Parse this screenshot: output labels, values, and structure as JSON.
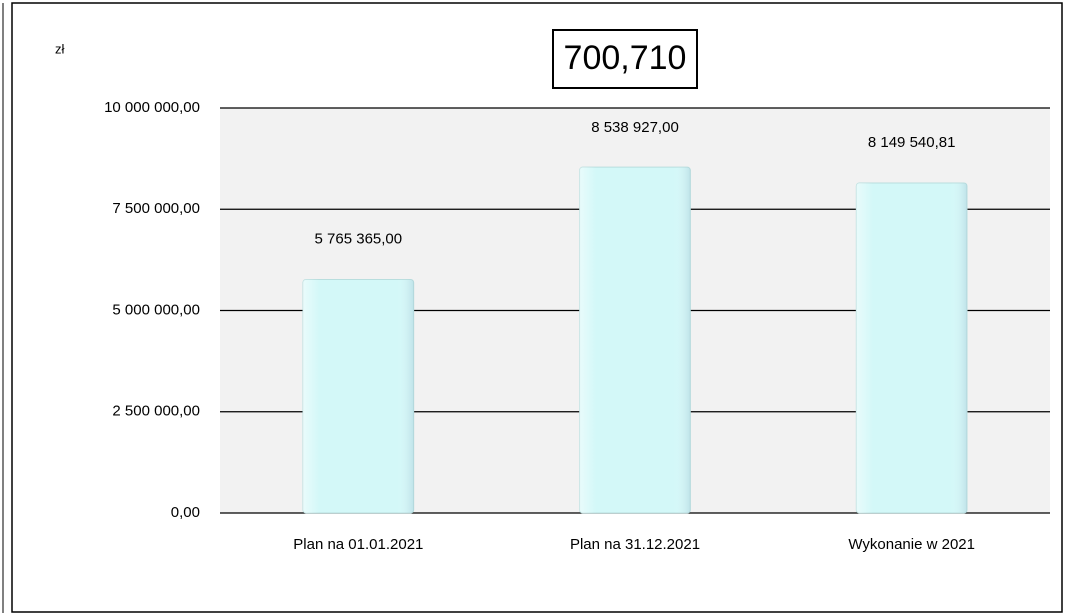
{
  "chart_data": {
    "type": "bar",
    "title": "700,710",
    "y_label": "zł",
    "categories": [
      "Plan na 01.01.2021",
      "Plan na 31.12.2021",
      "Wykonanie w 2021"
    ],
    "values": [
      5765365,
      8538927,
      8149540.81
    ],
    "value_labels": [
      "5 765 365,00",
      "8 538 927,00",
      "8 149 540,81"
    ],
    "color": "#d3f8f8",
    "ylim": [
      0,
      10000000
    ],
    "yticks": [
      {
        "value": 0,
        "label": "0,00"
      },
      {
        "value": 2500000,
        "label": "2 500 000,00"
      },
      {
        "value": 5000000,
        "label": "5 000 000,00"
      },
      {
        "value": 7500000,
        "label": "7 500 000,00"
      },
      {
        "value": 10000000,
        "label": "10 000 000,00"
      }
    ],
    "grid": true
  }
}
